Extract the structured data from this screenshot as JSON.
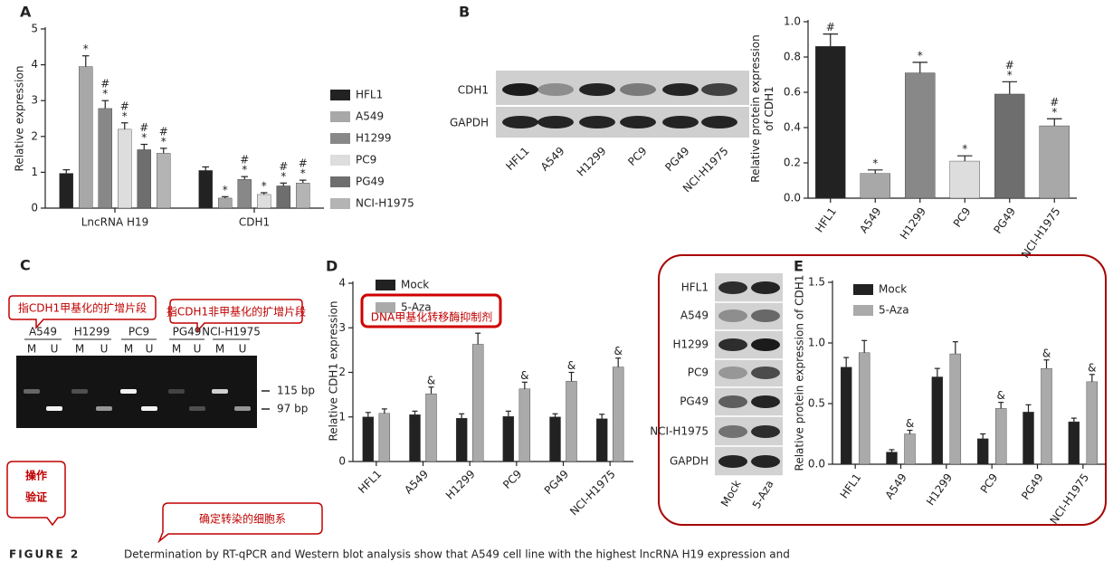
{
  "chart_data": [
    {
      "panel": "A",
      "type": "bar",
      "ylabel": "Relative expression",
      "categories": [
        "LncRNA H19",
        "CDH1"
      ],
      "ylim": [
        0,
        5
      ],
      "yticks": [
        0,
        1,
        2,
        3,
        4,
        5
      ],
      "series": [
        {
          "name": "HFL1",
          "color": "#222222",
          "values": [
            0.97,
            1.05
          ],
          "errors": [
            0.1,
            0.1
          ],
          "marks": [
            null,
            null
          ]
        },
        {
          "name": "A549",
          "color": "#a8a8a8",
          "values": [
            3.95,
            0.28
          ],
          "errors": [
            0.3,
            0.04
          ],
          "marks": [
            [
              "*"
            ],
            [
              "*"
            ]
          ]
        },
        {
          "name": "H1299",
          "color": "#888888",
          "values": [
            2.78,
            0.8
          ],
          "errors": [
            0.22,
            0.08
          ],
          "marks": [
            [
              "#",
              "*"
            ],
            [
              "#",
              "*"
            ]
          ]
        },
        {
          "name": "PC9",
          "color": "#dddddd",
          "values": [
            2.2,
            0.38
          ],
          "errors": [
            0.18,
            0.05
          ],
          "marks": [
            [
              "#",
              "*"
            ],
            [
              "*"
            ]
          ]
        },
        {
          "name": "PG49",
          "color": "#6e6e6e",
          "values": [
            1.63,
            0.62
          ],
          "errors": [
            0.15,
            0.08
          ],
          "marks": [
            [
              "#",
              "*"
            ],
            [
              "#",
              "*"
            ]
          ]
        },
        {
          "name": "NCI-H1975",
          "color": "#b4b4b4",
          "values": [
            1.53,
            0.7
          ],
          "errors": [
            0.14,
            0.08
          ],
          "marks": [
            [
              "#",
              "*"
            ],
            [
              "#",
              "*"
            ]
          ]
        }
      ]
    },
    {
      "panel": "B",
      "type": "bar",
      "ylabel": [
        "Relative protein expression",
        "of CDH1"
      ],
      "blot": {
        "rows": [
          "CDH1",
          "GAPDH"
        ],
        "lanes": [
          "HFL1",
          "A549",
          "H1299",
          "PC9",
          "PG49",
          "NCI-H1975"
        ]
      },
      "categories": [
        "HFL1",
        "A549",
        "H1299",
        "PC9",
        "PG49",
        "NCI-H1975"
      ],
      "ylim": [
        0,
        1
      ],
      "yticks": [
        {
          "value": 0,
          "label": "0.0"
        },
        0.2,
        0.4,
        0.6,
        0.8,
        {
          "value": 1,
          "label": "1.0"
        }
      ],
      "series": [
        {
          "colors": [
            "#222222",
            "#a8a8a8",
            "#888888",
            "#dddddd",
            "#6e6e6e",
            "#a8a8a8"
          ],
          "values": [
            0.86,
            0.14,
            0.71,
            0.21,
            0.59,
            0.41
          ],
          "errors": [
            0.07,
            0.02,
            0.06,
            0.03,
            0.07,
            0.04
          ],
          "marks": [
            [
              "#"
            ],
            [
              "*"
            ],
            [
              "*"
            ],
            [
              "*"
            ],
            [
              "#",
              "*"
            ],
            [
              "#",
              "*"
            ]
          ]
        }
      ]
    },
    {
      "panel": "D",
      "type": "bar",
      "ylabel": "Relative CDH1 expression",
      "categories": [
        "HFL1",
        "A549",
        "H1299",
        "PC9",
        "PG49",
        "NCI-H1975"
      ],
      "ylim": [
        0,
        4
      ],
      "yticks": [
        0,
        1,
        2,
        3,
        4
      ],
      "series": [
        {
          "name": "Mock",
          "color": "#222222",
          "values": [
            1.0,
            1.05,
            0.97,
            1.01,
            1.0,
            0.96
          ],
          "errors": [
            0.1,
            0.08,
            0.1,
            0.12,
            0.07,
            0.1
          ],
          "marks": [
            null,
            null,
            null,
            null,
            null,
            null
          ]
        },
        {
          "name": "5-Aza",
          "color": "#aaaaaa",
          "values": [
            1.08,
            1.52,
            2.63,
            1.63,
            1.8,
            2.12
          ],
          "errors": [
            0.1,
            0.15,
            0.25,
            0.15,
            0.2,
            0.2
          ],
          "marks": [
            null,
            [
              "&"
            ],
            null,
            [
              "&"
            ],
            [
              "&"
            ],
            [
              "&"
            ]
          ]
        }
      ]
    },
    {
      "panel": "E",
      "type": "bar",
      "ylabel": "Relative protein expression of CDH1",
      "blot": {
        "rows": [
          "HFL1",
          "A549",
          "H1299",
          "PC9",
          "PG49",
          "NCI-H1975",
          "GAPDH"
        ],
        "lanes": [
          "Mock",
          "5-Aza"
        ]
      },
      "categories": [
        "HFL1",
        "A549",
        "H1299",
        "PC9",
        "PG49",
        "NCI-H1975"
      ],
      "ylim": [
        0,
        1.5
      ],
      "yticks": [
        {
          "value": 0,
          "label": "0.0"
        },
        0.5,
        {
          "value": 1,
          "label": "1.0"
        },
        1.5
      ],
      "series": [
        {
          "name": "Mock",
          "color": "#222222",
          "values": [
            0.8,
            0.1,
            0.72,
            0.21,
            0.43,
            0.35
          ],
          "errors": [
            0.08,
            0.02,
            0.07,
            0.04,
            0.06,
            0.03
          ],
          "marks": [
            null,
            null,
            null,
            null,
            null,
            null
          ]
        },
        {
          "name": "5-Aza",
          "color": "#aaaaaa",
          "values": [
            0.92,
            0.25,
            0.91,
            0.46,
            0.79,
            0.68
          ],
          "errors": [
            0.1,
            0.03,
            0.1,
            0.05,
            0.07,
            0.06
          ],
          "marks": [
            null,
            [
              "&"
            ],
            null,
            [
              "&"
            ],
            [
              "&"
            ],
            [
              "&"
            ]
          ]
        }
      ]
    }
  ],
  "gel": {
    "panel": "C",
    "lanes": [
      "A549",
      "H1299",
      "PC9",
      "PG49",
      "NCI-H1975"
    ],
    "lane_marks": [
      "M",
      "U"
    ],
    "sizes": [
      "115 bp",
      "97 bp"
    ]
  },
  "callouts": [
    "指CDH1甲基化的扩增片段",
    "指CDH1非甲基化的扩增片段",
    "DNA甲基化转移酶抑制剂",
    "确定转染的细胞系"
  ],
  "badge": [
    "操作",
    "验证"
  ],
  "caption": {
    "label": "FIGURE 2",
    "text": "Determination by RT-qPCR and Western blot analysis show that A549 cell line with the highest lncRNA H19 expression and"
  }
}
